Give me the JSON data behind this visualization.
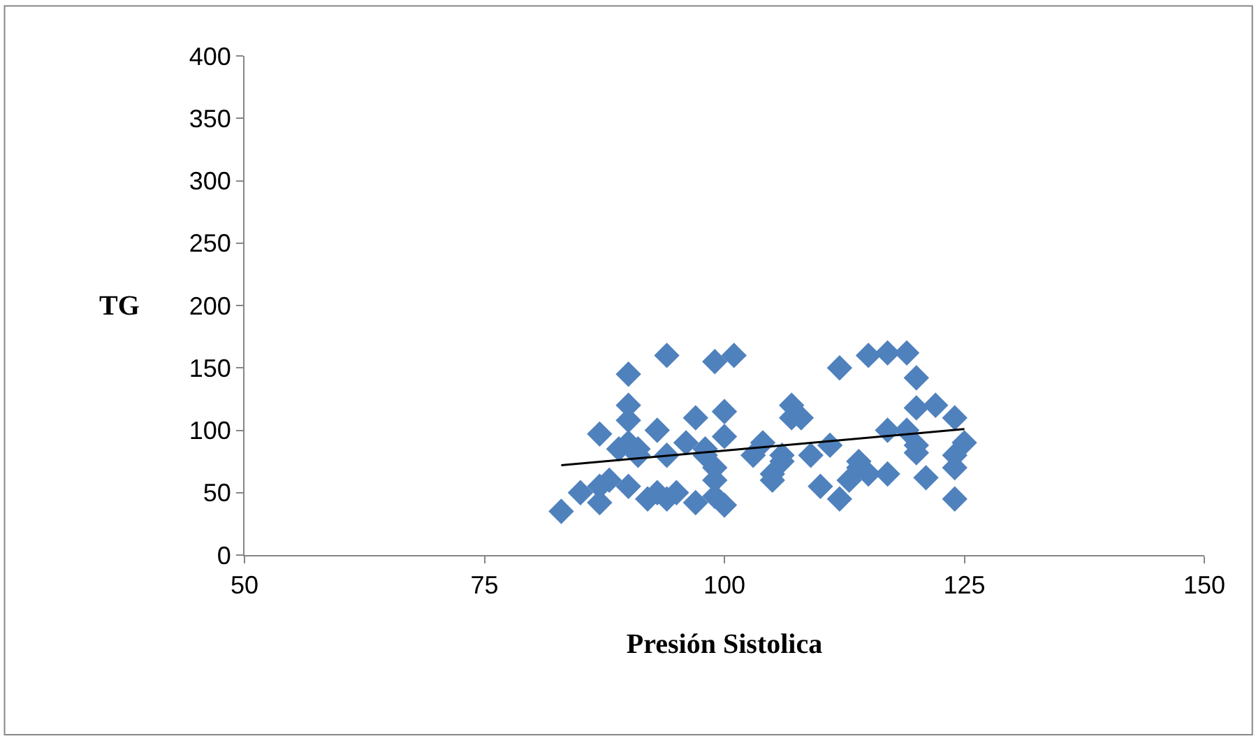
{
  "chart_data": {
    "type": "scatter",
    "xlabel": "Presión Sistolica",
    "ylabel": "TG",
    "xlim": [
      50,
      150
    ],
    "xticks": [
      50,
      75,
      100,
      125,
      150
    ],
    "ylim": [
      0,
      400
    ],
    "yticks": [
      0,
      50,
      100,
      150,
      200,
      250,
      300,
      350,
      400
    ],
    "grid": false,
    "marker": "diamond",
    "series": [
      {
        "color": "#4f81bd",
        "x": [
          83,
          85,
          87,
          87,
          87,
          88,
          89,
          90,
          90,
          90,
          90,
          90,
          91,
          91,
          92,
          93,
          93,
          94,
          94,
          94,
          95,
          96,
          97,
          97,
          98,
          98,
          99,
          99,
          99,
          99,
          101,
          100,
          100,
          100,
          103,
          104,
          105,
          105,
          106,
          106,
          107,
          107,
          108,
          109,
          110,
          111,
          112,
          112,
          113,
          114,
          114,
          115,
          115,
          117,
          117,
          117,
          119,
          119,
          120,
          120,
          120,
          120,
          121,
          122,
          124,
          124,
          124,
          124,
          125
        ],
        "values": [
          35,
          50,
          97,
          55,
          42,
          60,
          85,
          90,
          145,
          120,
          108,
          55,
          80,
          85,
          45,
          100,
          50,
          160,
          45,
          80,
          50,
          90,
          110,
          42,
          80,
          85,
          155,
          70,
          60,
          47,
          160,
          115,
          95,
          40,
          80,
          90,
          60,
          65,
          75,
          80,
          120,
          110,
          110,
          80,
          55,
          88,
          150,
          45,
          60,
          70,
          75,
          65,
          160,
          162,
          100,
          65,
          162,
          100,
          142,
          118,
          88,
          82,
          62,
          120,
          110,
          80,
          70,
          45,
          90
        ]
      },
      {
        "type": "line",
        "color": "#000000",
        "x": [
          83,
          125
        ],
        "values": [
          72,
          101
        ],
        "marker": "none"
      }
    ]
  }
}
